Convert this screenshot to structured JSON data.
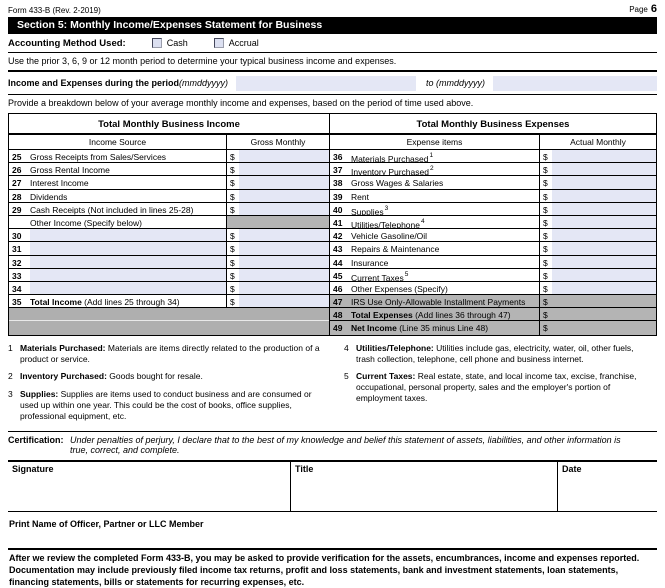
{
  "header": {
    "form_id": "Form 433-B (Rev. 2-2019)",
    "page_label": "Page",
    "page_number": "6",
    "section_title": "Section 5: Monthly Income/Expenses Statement for Business"
  },
  "accounting": {
    "label": "Accounting Method Used:",
    "options": [
      "Cash",
      "Accrual"
    ]
  },
  "instructions": {
    "period_note": "Use the prior 3, 6, 9 or 12 month period to determine your typical business income and expenses.",
    "period_label": "Income and Expenses during the period ",
    "period_format": "(mmddyyyy)",
    "to_label": "to ",
    "to_format": "(mmddyyyy)",
    "breakdown_note": "Provide a breakdown below of your average monthly income and expenses, based on the period of time used above."
  },
  "currency_symbol": "$",
  "income_table": {
    "title": "Total Monthly Business Income",
    "col_label": "Income Source",
    "col_amount": "Gross Monthly",
    "rows": [
      {
        "kind": "item",
        "num": "25",
        "label": "Gross Receipts from Sales/Services"
      },
      {
        "kind": "item",
        "num": "26",
        "label": "Gross Rental Income"
      },
      {
        "kind": "item",
        "num": "27",
        "label": "Interest Income"
      },
      {
        "kind": "item",
        "num": "28",
        "label": "Dividends"
      },
      {
        "kind": "item",
        "num": "29",
        "label": "Cash Receipts (Not included in lines 25-28)"
      },
      {
        "kind": "specify",
        "label": "Other Income (Specify below)"
      },
      {
        "kind": "fill",
        "num": "30"
      },
      {
        "kind": "fill",
        "num": "31"
      },
      {
        "kind": "fill",
        "num": "32"
      },
      {
        "kind": "fill",
        "num": "33"
      },
      {
        "kind": "fill",
        "num": "34"
      },
      {
        "kind": "item",
        "num": "35",
        "label": "Total Income",
        "bold": true,
        "suffix": " (Add lines 25 through 34)"
      },
      {
        "kind": "graybar"
      },
      {
        "kind": "graybar"
      }
    ]
  },
  "expense_table": {
    "title": "Total Monthly Business Expenses",
    "col_label": "Expense items",
    "col_amount": "Actual Monthly",
    "rows": [
      {
        "kind": "item",
        "num": "36",
        "label": "Materials Purchased",
        "sup": "1"
      },
      {
        "kind": "item",
        "num": "37",
        "label": "Inventory Purchased",
        "sup": "2"
      },
      {
        "kind": "item",
        "num": "38",
        "label": "Gross Wages & Salaries"
      },
      {
        "kind": "item",
        "num": "39",
        "label": "Rent"
      },
      {
        "kind": "item",
        "num": "40",
        "label": "Supplies",
        "sup": "3"
      },
      {
        "kind": "item",
        "num": "41",
        "label": "Utilities/Telephone",
        "sup": "4"
      },
      {
        "kind": "item",
        "num": "42",
        "label": "Vehicle Gasoline/Oil"
      },
      {
        "kind": "item",
        "num": "43",
        "label": "Repairs & Maintenance"
      },
      {
        "kind": "item",
        "num": "44",
        "label": "Insurance"
      },
      {
        "kind": "item",
        "num": "45",
        "label": "Current Taxes",
        "sup": "5"
      },
      {
        "kind": "item",
        "num": "46",
        "label": "Other Expenses (Specify)"
      },
      {
        "kind": "grayitem",
        "num": "47",
        "label": "IRS Use Only-Allowable Installment Payments"
      },
      {
        "kind": "grayitem",
        "num": "48",
        "label": "Total Expenses",
        "bold": true,
        "suffix": " (Add lines 36 through 47)"
      },
      {
        "kind": "grayitem",
        "num": "49",
        "label": "Net Income",
        "bold": true,
        "suffix": " (Line 35 minus Line 48)"
      }
    ]
  },
  "footnotes": {
    "left": [
      {
        "num": "1",
        "term": "Materials Purchased:",
        "text": "Materials are items directly related to the production of a product or service."
      },
      {
        "num": "2",
        "term": "Inventory Purchased:",
        "text": "Goods bought for resale."
      },
      {
        "num": "3",
        "term": "Supplies:",
        "text": "Supplies are items used to conduct business and are consumed or used up within one year. This could be the cost of books, office supplies, professional equipment, etc."
      }
    ],
    "right": [
      {
        "num": "4",
        "term": "Utilities/Telephone:",
        "text": "Utilities include gas, electricity, water, oil, other fuels, trash collection, telephone, cell phone and business internet."
      },
      {
        "num": "5",
        "term": "Current Taxes:",
        "text": "Real estate, state, and local income tax, excise, franchise, occupational, personal property, sales and the employer's portion of employment taxes."
      }
    ]
  },
  "certification": {
    "label": "Certification:",
    "text": "Under penalties of perjury, I declare that to the best of my knowledge and belief this statement of assets, liabilities, and other information is true, correct, and complete.",
    "signature_label": "Signature",
    "title_label": "Title",
    "date_label": "Date",
    "print_name_label": "Print Name of Officer, Partner or LLC Member"
  },
  "footer": {
    "review_note": "After we review the completed Form 433-B, you may be asked to provide verification for the assets, encumbrances, income and expenses reported. Documentation may include previously filed income tax returns, profit and loss statements, bank and investment statements, loan statements, financing statements, bills or statements for recurring expenses, etc."
  },
  "colors": {
    "field_bg": "#e4e7f5",
    "gray_cell": "#b4b4b4",
    "banner_bg": "#000000"
  }
}
